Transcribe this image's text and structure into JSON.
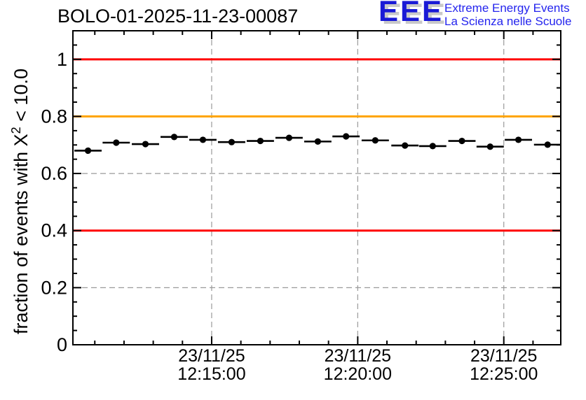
{
  "header": {
    "title": "BOLO-01-2025-11-23-00087",
    "logo": {
      "acronym": "EEE",
      "tagline1": "Extreme Energy Events",
      "tagline2": "La Scienza nelle Scuole",
      "acronym_color": "#1a1ad6",
      "tagline_color": "#2424ee",
      "shadow_color": "#c9c9c9"
    }
  },
  "chart_data": {
    "type": "scatter",
    "title": "BOLO-01-2025-11-23-00087",
    "ylabel": "fraction of events with X² < 10.0",
    "ylabel_parts": {
      "main": "fraction of events with X",
      "sup": "2",
      "tail": " < 10.0"
    },
    "xlabel": "",
    "date_label": "23/11/25",
    "ylim": [
      0,
      1.1
    ],
    "x_range": {
      "start": "12:10:15",
      "end": "12:26:57"
    },
    "x_major_ticks": [
      {
        "date": "23/11/25",
        "time": "12:15:00"
      },
      {
        "date": "23/11/25",
        "time": "12:20:00"
      },
      {
        "date": "23/11/25",
        "time": "12:25:00"
      }
    ],
    "x_minor_tick_every_seconds": 60,
    "y_major_ticks": [
      {
        "value": 0,
        "label": "0"
      },
      {
        "value": 0.2,
        "label": "0.2"
      },
      {
        "value": 0.4,
        "label": "0.4"
      },
      {
        "value": 0.6,
        "label": "0.6"
      },
      {
        "value": 0.8,
        "label": "0.8"
      },
      {
        "value": 1,
        "label": "1"
      }
    ],
    "y_minor_tick_step": 0.05,
    "grid": {
      "show": true,
      "style": "dashed",
      "color": "#9a9a9a"
    },
    "reference_lines": [
      {
        "value": 1.0,
        "color": "#ff0000",
        "name": "upper-red-line"
      },
      {
        "value": 0.8,
        "color": "#ffa500",
        "name": "orange-warning-line"
      },
      {
        "value": 0.4,
        "color": "#ff0000",
        "name": "lower-red-line"
      }
    ],
    "series": [
      {
        "name": "fraction of events with chi2 < 10 per minute",
        "marker": "filled-circle",
        "color": "#000000",
        "x_error_seconds": 28,
        "points": [
          {
            "time": "12:10:46",
            "value": 0.68
          },
          {
            "time": "12:11:44",
            "value": 0.708
          },
          {
            "time": "12:12:44",
            "value": 0.703
          },
          {
            "time": "12:13:43",
            "value": 0.728
          },
          {
            "time": "12:14:42",
            "value": 0.718
          },
          {
            "time": "12:15:41",
            "value": 0.71
          },
          {
            "time": "12:16:40",
            "value": 0.714
          },
          {
            "time": "12:17:39",
            "value": 0.725
          },
          {
            "time": "12:18:38",
            "value": 0.712
          },
          {
            "time": "12:19:36",
            "value": 0.73
          },
          {
            "time": "12:20:36",
            "value": 0.716
          },
          {
            "time": "12:21:37",
            "value": 0.698
          },
          {
            "time": "12:22:34",
            "value": 0.696
          },
          {
            "time": "12:23:34",
            "value": 0.714
          },
          {
            "time": "12:24:32",
            "value": 0.694
          },
          {
            "time": "12:25:30",
            "value": 0.718
          },
          {
            "time": "12:26:30",
            "value": 0.701
          }
        ]
      }
    ]
  }
}
